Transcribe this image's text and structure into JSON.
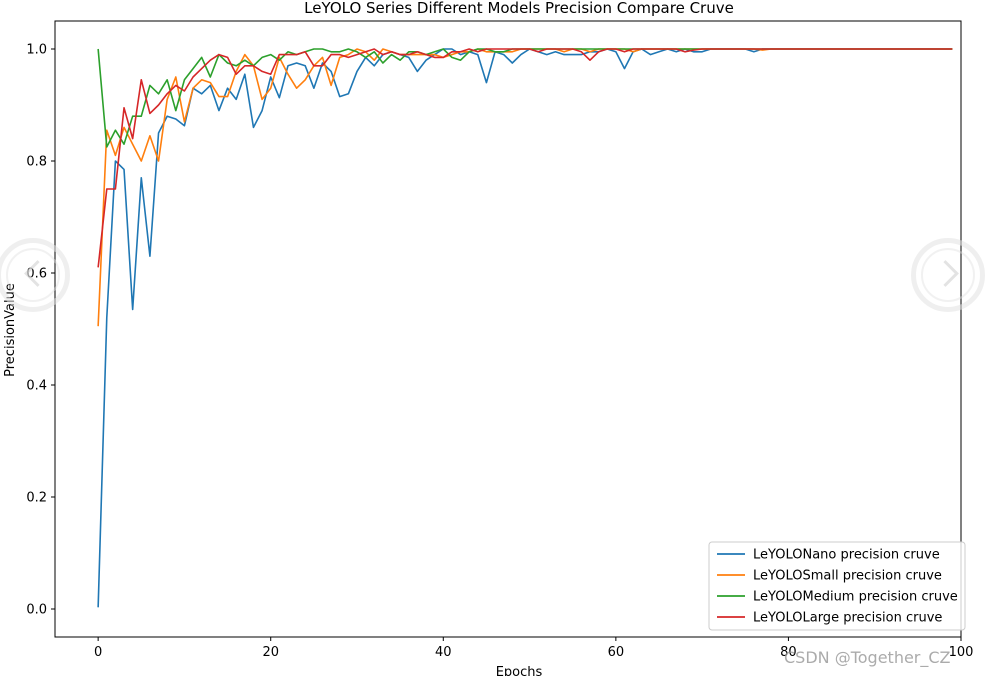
{
  "chart_data": {
    "type": "line",
    "title": "LeYOLO Series Different Models Precision Compare Cruve",
    "xlabel": "Epochs",
    "ylabel": "PrecisionValue",
    "xlim": [
      -5,
      100
    ],
    "ylim": [
      -0.05,
      1.05
    ],
    "xticks": [
      0,
      20,
      40,
      60,
      80,
      100
    ],
    "xtick_labels": [
      "0",
      "20",
      "40",
      "60",
      "80",
      "100"
    ],
    "yticks": [
      0.0,
      0.2,
      0.4,
      0.6,
      0.8,
      1.0
    ],
    "ytick_labels": [
      "0.0",
      "0.2",
      "0.4",
      "0.6",
      "0.8",
      "1.0"
    ],
    "grid": false,
    "legend_position": "lower-right",
    "series": [
      {
        "name": "LeYOLONano precision cruve",
        "color": "#1f77b4",
        "values": [
          0.003,
          0.52,
          0.8,
          0.785,
          0.535,
          0.77,
          0.63,
          0.85,
          0.88,
          0.875,
          0.863,
          0.93,
          0.92,
          0.935,
          0.89,
          0.93,
          0.91,
          0.955,
          0.86,
          0.89,
          0.95,
          0.913,
          0.97,
          0.975,
          0.97,
          0.93,
          0.975,
          0.96,
          0.915,
          0.92,
          0.96,
          0.985,
          0.97,
          0.99,
          0.995,
          0.99,
          0.985,
          0.96,
          0.98,
          0.99,
          1.0,
          1.0,
          0.99,
          0.995,
          0.99,
          0.94,
          0.995,
          0.99,
          0.975,
          0.99,
          1.0,
          0.995,
          0.99,
          0.995,
          0.99,
          0.99,
          0.99,
          0.995,
          0.995,
          1.0,
          0.995,
          0.965,
          0.995,
          1.0,
          0.99,
          0.995,
          1.0,
          0.995,
          1.0,
          0.995,
          0.995,
          1.0,
          1.0,
          1.0,
          1.0,
          1.0,
          0.995,
          1.0,
          1.0,
          1.0,
          1.0,
          1.0,
          1.0,
          1.0,
          1.0,
          1.0,
          1.0,
          1.0,
          1.0,
          1.0,
          1.0,
          1.0,
          1.0,
          1.0,
          1.0,
          1.0,
          1.0,
          1.0,
          1.0,
          1.0
        ]
      },
      {
        "name": "LeYOLOSmall precision cruve",
        "color": "#ff7f0e",
        "values": [
          0.505,
          0.855,
          0.81,
          0.86,
          0.83,
          0.8,
          0.845,
          0.8,
          0.91,
          0.95,
          0.87,
          0.93,
          0.945,
          0.94,
          0.915,
          0.915,
          0.96,
          0.99,
          0.97,
          0.91,
          0.93,
          0.985,
          0.955,
          0.93,
          0.945,
          0.97,
          0.985,
          0.935,
          0.985,
          0.99,
          1.0,
          0.995,
          0.98,
          1.0,
          0.995,
          0.99,
          0.99,
          0.99,
          0.99,
          0.99,
          0.985,
          0.99,
          0.995,
          0.995,
          1.0,
          0.995,
          0.995,
          0.995,
          0.995,
          1.0,
          1.0,
          1.0,
          1.0,
          1.0,
          0.995,
          1.0,
          1.0,
          0.995,
          1.0,
          1.0,
          1.0,
          1.0,
          0.995,
          1.0,
          1.0,
          1.0,
          1.0,
          1.0,
          1.0,
          1.0,
          1.0,
          1.0,
          1.0,
          1.0,
          1.0,
          1.0,
          1.0,
          0.998,
          1.0,
          1.0,
          1.0,
          1.0,
          1.0,
          1.0,
          1.0,
          1.0,
          1.0,
          1.0,
          1.0,
          1.0,
          1.0,
          1.0,
          1.0,
          1.0,
          1.0,
          1.0,
          1.0,
          1.0,
          1.0,
          1.0
        ]
      },
      {
        "name": "LeYOLOMedium precision cruve",
        "color": "#2ca02c",
        "values": [
          1.0,
          0.825,
          0.855,
          0.83,
          0.88,
          0.88,
          0.935,
          0.92,
          0.945,
          0.89,
          0.945,
          0.965,
          0.985,
          0.95,
          0.99,
          0.975,
          0.97,
          0.98,
          0.97,
          0.985,
          0.99,
          0.98,
          0.995,
          0.99,
          0.995,
          1.0,
          1.0,
          0.995,
          0.995,
          1.0,
          0.995,
          0.985,
          0.995,
          0.975,
          0.99,
          0.98,
          0.995,
          0.995,
          0.99,
          0.995,
          1.0,
          0.985,
          0.98,
          0.995,
          1.0,
          1.0,
          0.995,
          0.995,
          1.0,
          1.0,
          1.0,
          1.0,
          1.0,
          1.0,
          1.0,
          1.0,
          1.0,
          1.0,
          1.0,
          1.0,
          1.0,
          1.0,
          1.0,
          1.0,
          1.0,
          1.0,
          1.0,
          1.0,
          1.0,
          1.0,
          1.0,
          1.0,
          1.0,
          1.0,
          1.0,
          1.0,
          1.0,
          1.0,
          1.0,
          1.0,
          1.0,
          1.0,
          1.0,
          1.0,
          1.0,
          1.0,
          1.0,
          1.0,
          1.0,
          1.0,
          1.0,
          1.0,
          1.0,
          1.0,
          1.0,
          1.0,
          1.0,
          1.0,
          1.0,
          1.0
        ]
      },
      {
        "name": "LeYOLOLarge precision cruve",
        "color": "#d62728",
        "values": [
          0.61,
          0.75,
          0.75,
          0.895,
          0.84,
          0.945,
          0.885,
          0.9,
          0.92,
          0.935,
          0.925,
          0.95,
          0.965,
          0.98,
          0.99,
          0.985,
          0.955,
          0.97,
          0.97,
          0.96,
          0.955,
          0.99,
          0.99,
          0.99,
          0.995,
          0.97,
          0.97,
          0.99,
          0.99,
          0.985,
          0.99,
          0.995,
          1.0,
          0.99,
          0.995,
          0.99,
          0.99,
          0.995,
          0.99,
          0.985,
          0.985,
          0.995,
          0.995,
          1.0,
          0.995,
          1.0,
          1.0,
          1.0,
          1.0,
          1.0,
          1.0,
          0.995,
          1.0,
          1.0,
          1.0,
          1.0,
          0.995,
          0.98,
          0.995,
          1.0,
          1.0,
          0.995,
          1.0,
          1.0,
          1.0,
          1.0,
          1.0,
          1.0,
          0.995,
          0.998,
          1.0,
          1.0,
          1.0,
          1.0,
          1.0,
          1.0,
          1.0,
          1.0,
          1.0,
          1.0,
          1.0,
          1.0,
          1.0,
          1.0,
          1.0,
          1.0,
          1.0,
          1.0,
          1.0,
          1.0,
          1.0,
          1.0,
          1.0,
          1.0,
          1.0,
          1.0,
          1.0,
          1.0,
          1.0,
          1.0
        ]
      }
    ]
  },
  "watermark": "CSDN @Together_CZ"
}
